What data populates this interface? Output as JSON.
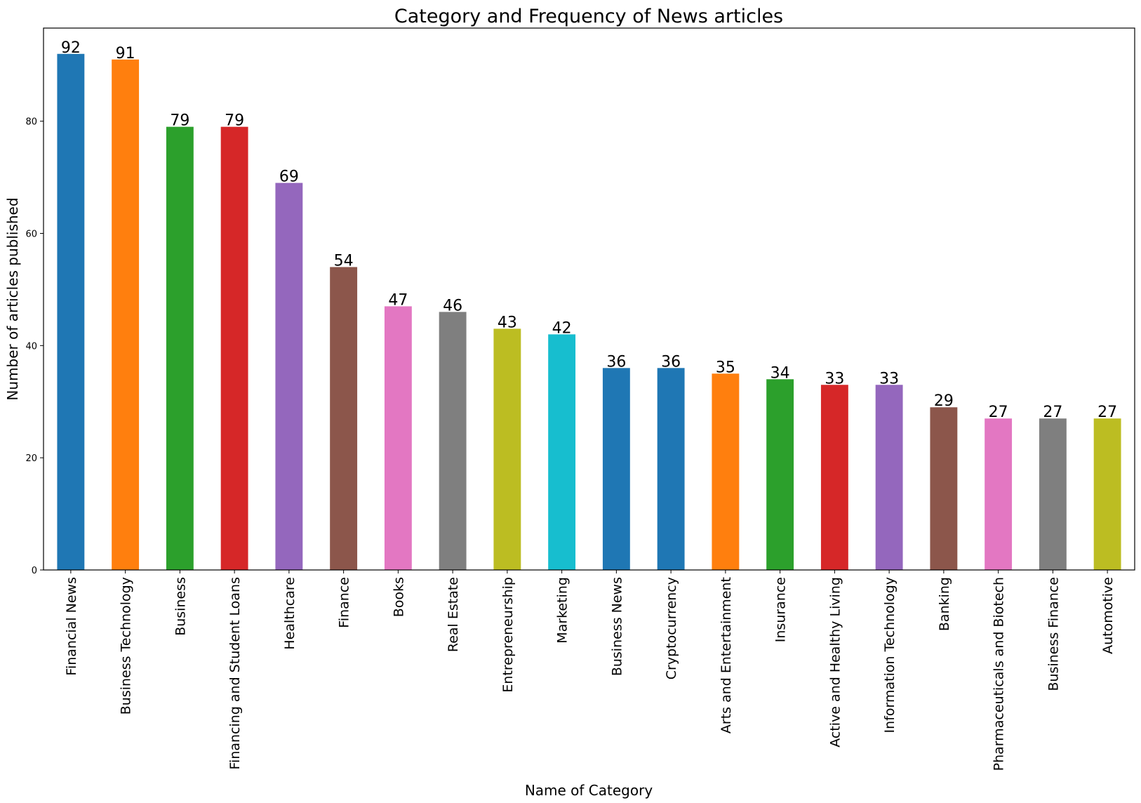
{
  "chart_data": {
    "type": "bar",
    "title": "Category and Frequency of News articles",
    "xlabel": "Name of Category",
    "ylabel": "Number of articles published",
    "ylim": [
      0,
      96.6
    ],
    "yticks": [
      0,
      20,
      40,
      60,
      80
    ],
    "grid": false,
    "legend": "none",
    "categories": [
      "Financial News",
      "Business Technology",
      "Business",
      "Financing and Student Loans",
      "Healthcare",
      "Finance",
      "Books",
      "Real Estate",
      "Entrepreneurship",
      "Marketing",
      "Business News",
      "Cryptocurrency",
      "Arts and Entertainment",
      "Insurance",
      "Active and Healthy Living",
      "Information Technology",
      "Banking",
      "Pharmaceuticals and Biotech",
      "Business Finance",
      "Automotive"
    ],
    "values": [
      92,
      91,
      79,
      79,
      69,
      54,
      47,
      46,
      43,
      42,
      36,
      36,
      35,
      34,
      33,
      33,
      29,
      27,
      27,
      27
    ],
    "colors": [
      "#1f77b4",
      "#ff7f0e",
      "#2ca02c",
      "#d62728",
      "#9467bd",
      "#8c564b",
      "#e377c2",
      "#7f7f7f",
      "#bcbd22",
      "#17becf",
      "#1f77b4",
      "#1f77b4",
      "#ff7f0e",
      "#2ca02c",
      "#d62728",
      "#9467bd",
      "#8c564b",
      "#e377c2",
      "#7f7f7f",
      "#bcbd22"
    ]
  }
}
